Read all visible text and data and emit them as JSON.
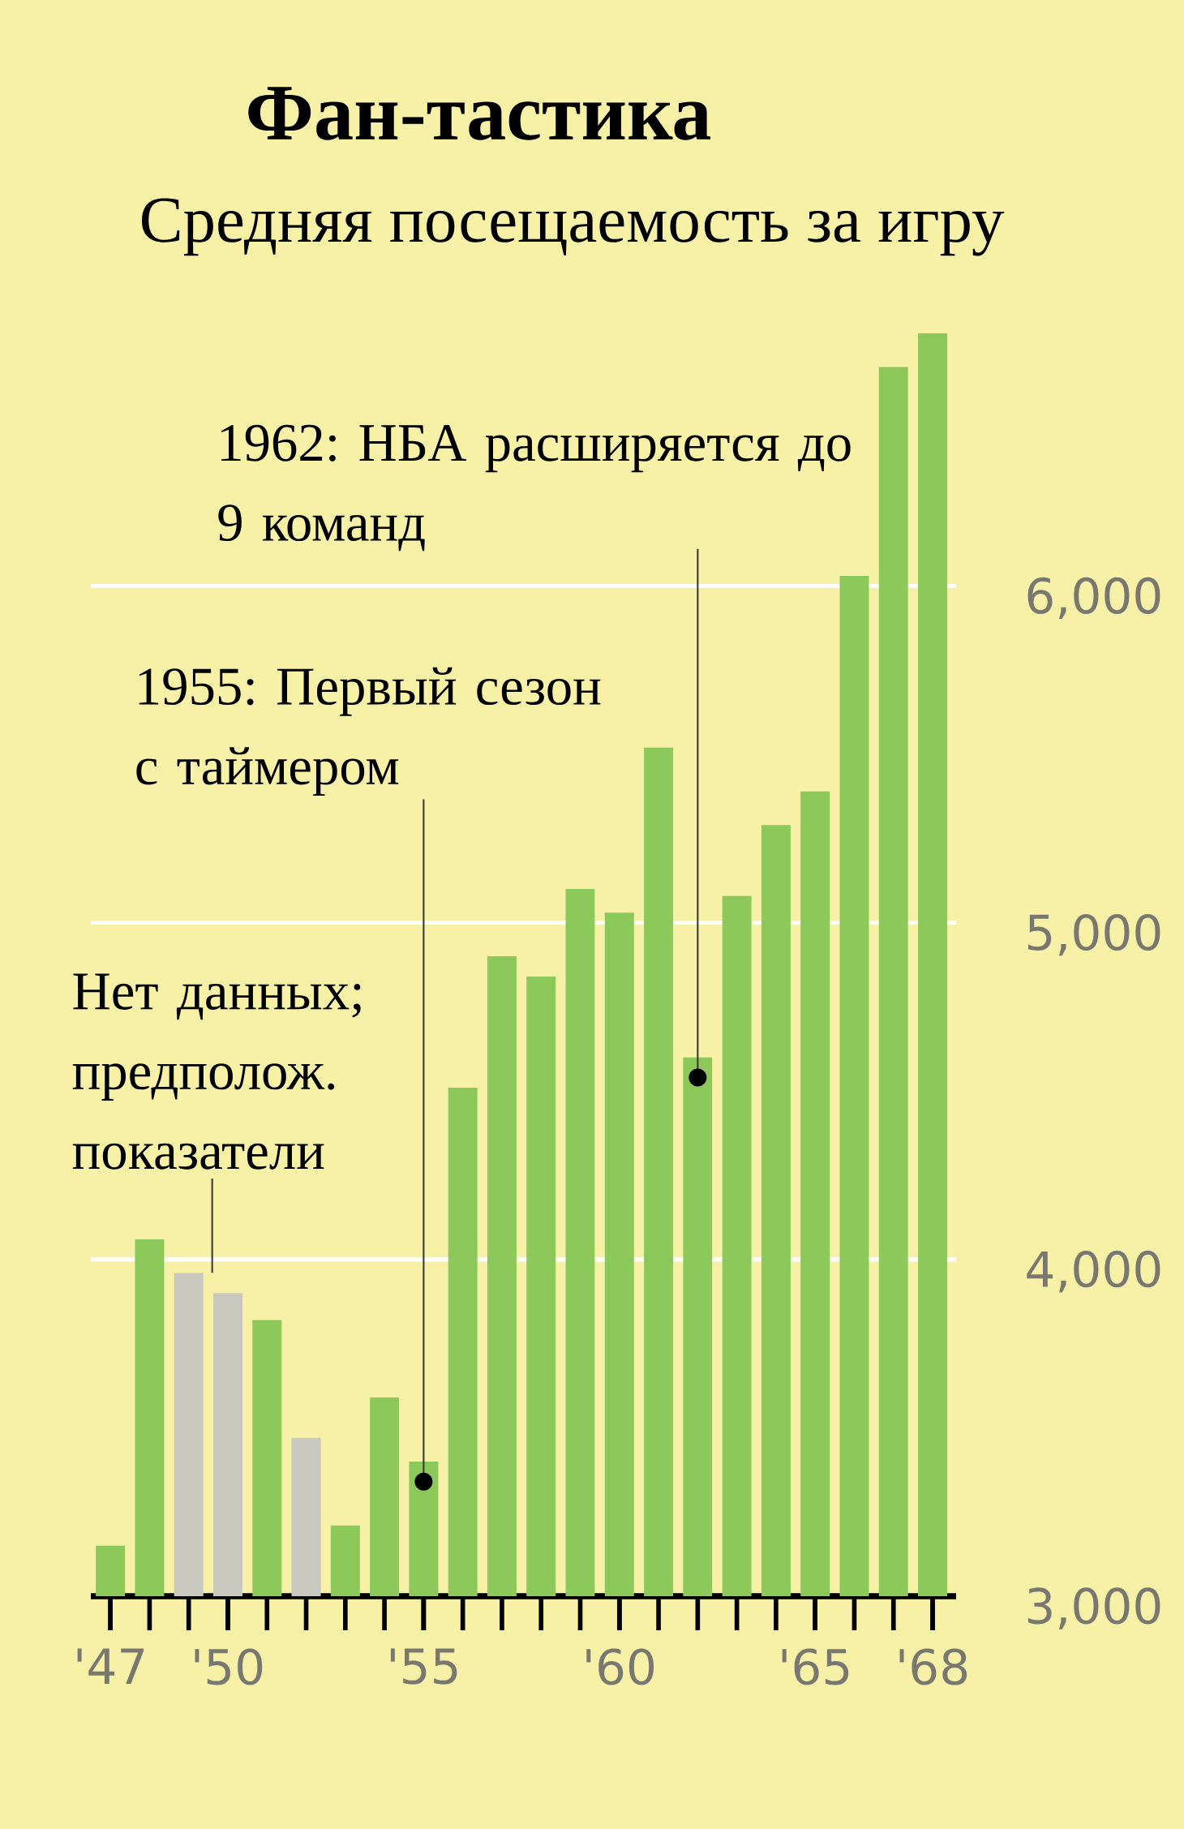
{
  "chart_data": {
    "type": "bar",
    "title": "Фан-тастика",
    "subtitle": "Средняя посещаемость за игру",
    "x": [
      1947,
      1948,
      1949,
      1950,
      1951,
      1952,
      1953,
      1954,
      1955,
      1956,
      1957,
      1958,
      1959,
      1960,
      1961,
      1962,
      1963,
      1964,
      1965,
      1966,
      1967,
      1968
    ],
    "values": [
      3150,
      4060,
      3960,
      3900,
      3820,
      3470,
      3210,
      3590,
      3400,
      4510,
      4900,
      4840,
      5100,
      5030,
      5520,
      4600,
      5080,
      5290,
      5390,
      6030,
      6650,
      6750
    ],
    "colors": [
      "#8dc95a",
      "#8dc95a",
      "#c8c8be",
      "#c8c8be",
      "#8dc95a",
      "#c8c8be",
      "#8dc95a",
      "#8dc95a",
      "#8dc95a",
      "#8dc95a",
      "#8dc95a",
      "#8dc95a",
      "#8dc95a",
      "#8dc95a",
      "#8dc95a",
      "#8dc95a",
      "#8dc95a",
      "#8dc95a",
      "#8dc95a",
      "#8dc95a",
      "#8dc95a",
      "#8dc95a"
    ],
    "xlim": [
      1946.5,
      1968.6
    ],
    "ylim": [
      3000,
      6750
    ],
    "xticks": [
      {
        "value": 1947,
        "label": "'47"
      },
      {
        "value": 1950,
        "label": "'50"
      },
      {
        "value": 1955,
        "label": "'55"
      },
      {
        "value": 1960,
        "label": "'60"
      },
      {
        "value": 1965,
        "label": "'65"
      },
      {
        "value": 1968,
        "label": "'68"
      }
    ],
    "yticks": [
      {
        "value": 3000,
        "label": "3,000"
      },
      {
        "value": 4000,
        "label": "4,000"
      },
      {
        "value": 5000,
        "label": "5,000"
      },
      {
        "value": 6000,
        "label": "6,000"
      }
    ],
    "grid": "y",
    "annotations": [
      "Нет данных; предполож. показатели",
      {
        "text": "1955: Первый сезон с таймером",
        "x": 1955,
        "y": 3340
      },
      {
        "text": "1962: НБА расширяется до 9 команд",
        "x": 1962,
        "y": 4540
      }
    ]
  }
}
